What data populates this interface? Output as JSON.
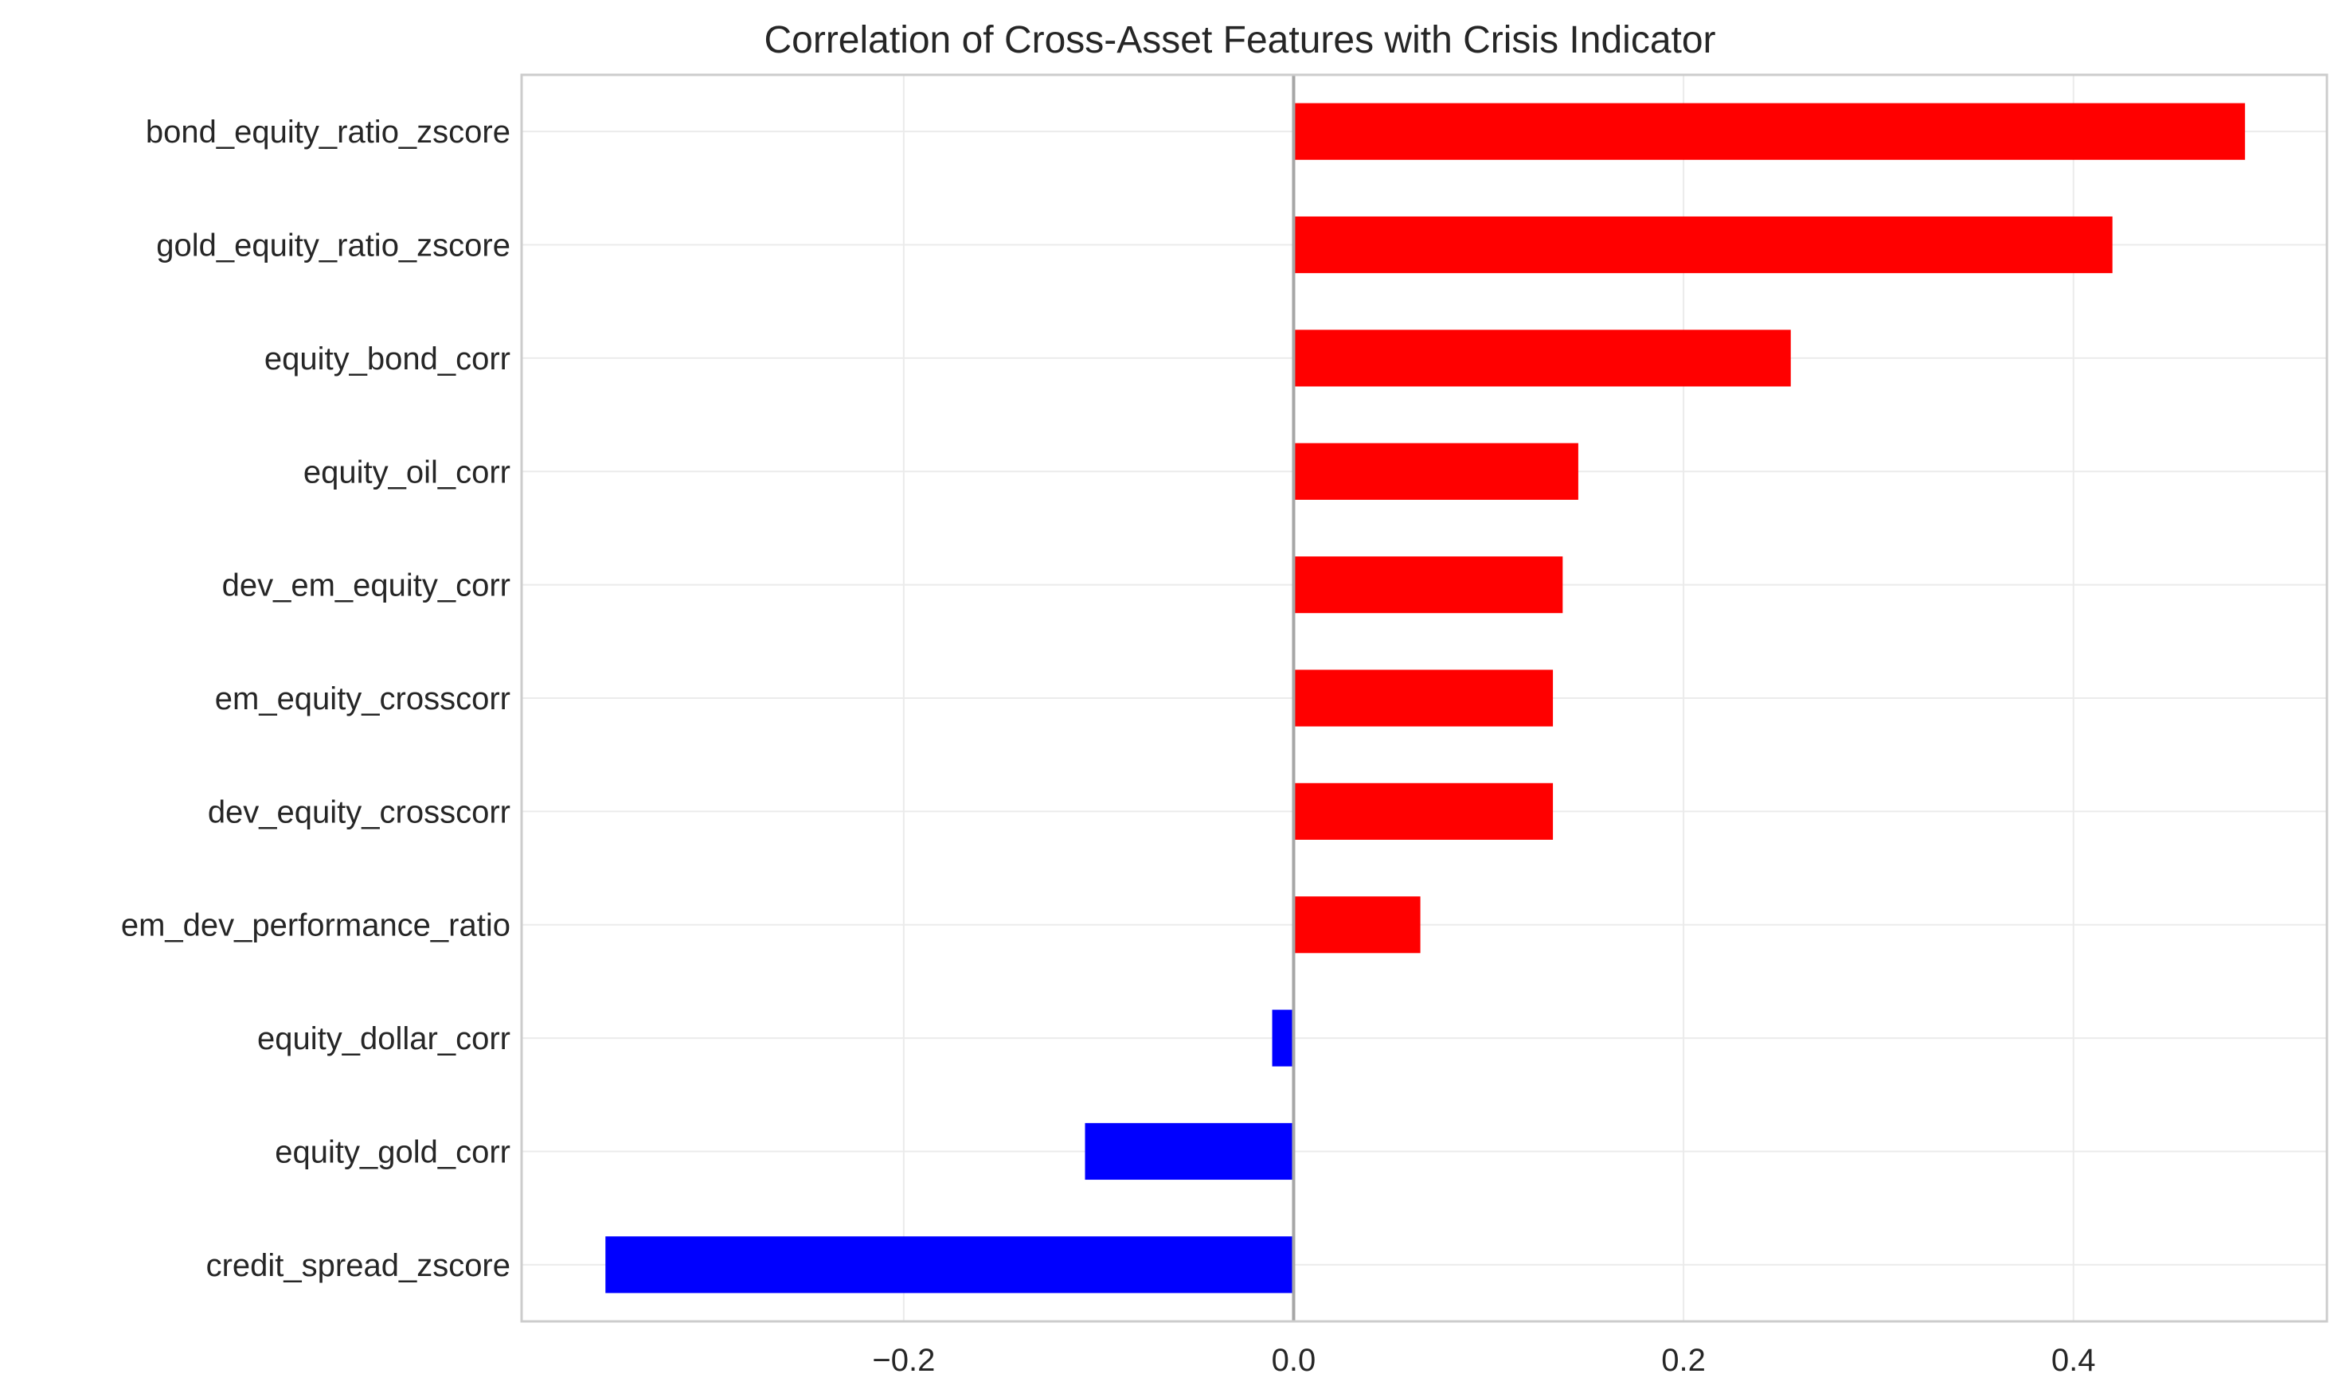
{
  "chart_data": {
    "type": "bar",
    "orientation": "horizontal",
    "title": "Correlation of Cross-Asset Features with Crisis Indicator",
    "xlabel": "",
    "ylabel": "",
    "categories": [
      "bond_equity_ratio_zscore",
      "gold_equity_ratio_zscore",
      "equity_bond_corr",
      "equity_oil_corr",
      "dev_em_equity_corr",
      "em_equity_crosscorr",
      "dev_equity_crosscorr",
      "em_dev_performance_ratio",
      "equity_dollar_corr",
      "equity_gold_corr",
      "credit_spread_zscore"
    ],
    "values": [
      0.488,
      0.42,
      0.255,
      0.146,
      0.138,
      0.133,
      0.133,
      0.065,
      -0.011,
      -0.107,
      -0.353
    ],
    "xlim": [
      -0.396,
      0.53
    ],
    "xticks": [
      -0.2,
      0.0,
      0.2,
      0.4
    ],
    "xtick_labels": [
      "−0.2",
      "0.0",
      "0.2",
      "0.4"
    ],
    "colors": {
      "positive": "#ff0000",
      "negative": "#0000ff",
      "zero_line": "#a6a6a6",
      "grid": "#ebebeb",
      "frame": "#cccccc"
    },
    "grid": true,
    "legend": "none"
  }
}
